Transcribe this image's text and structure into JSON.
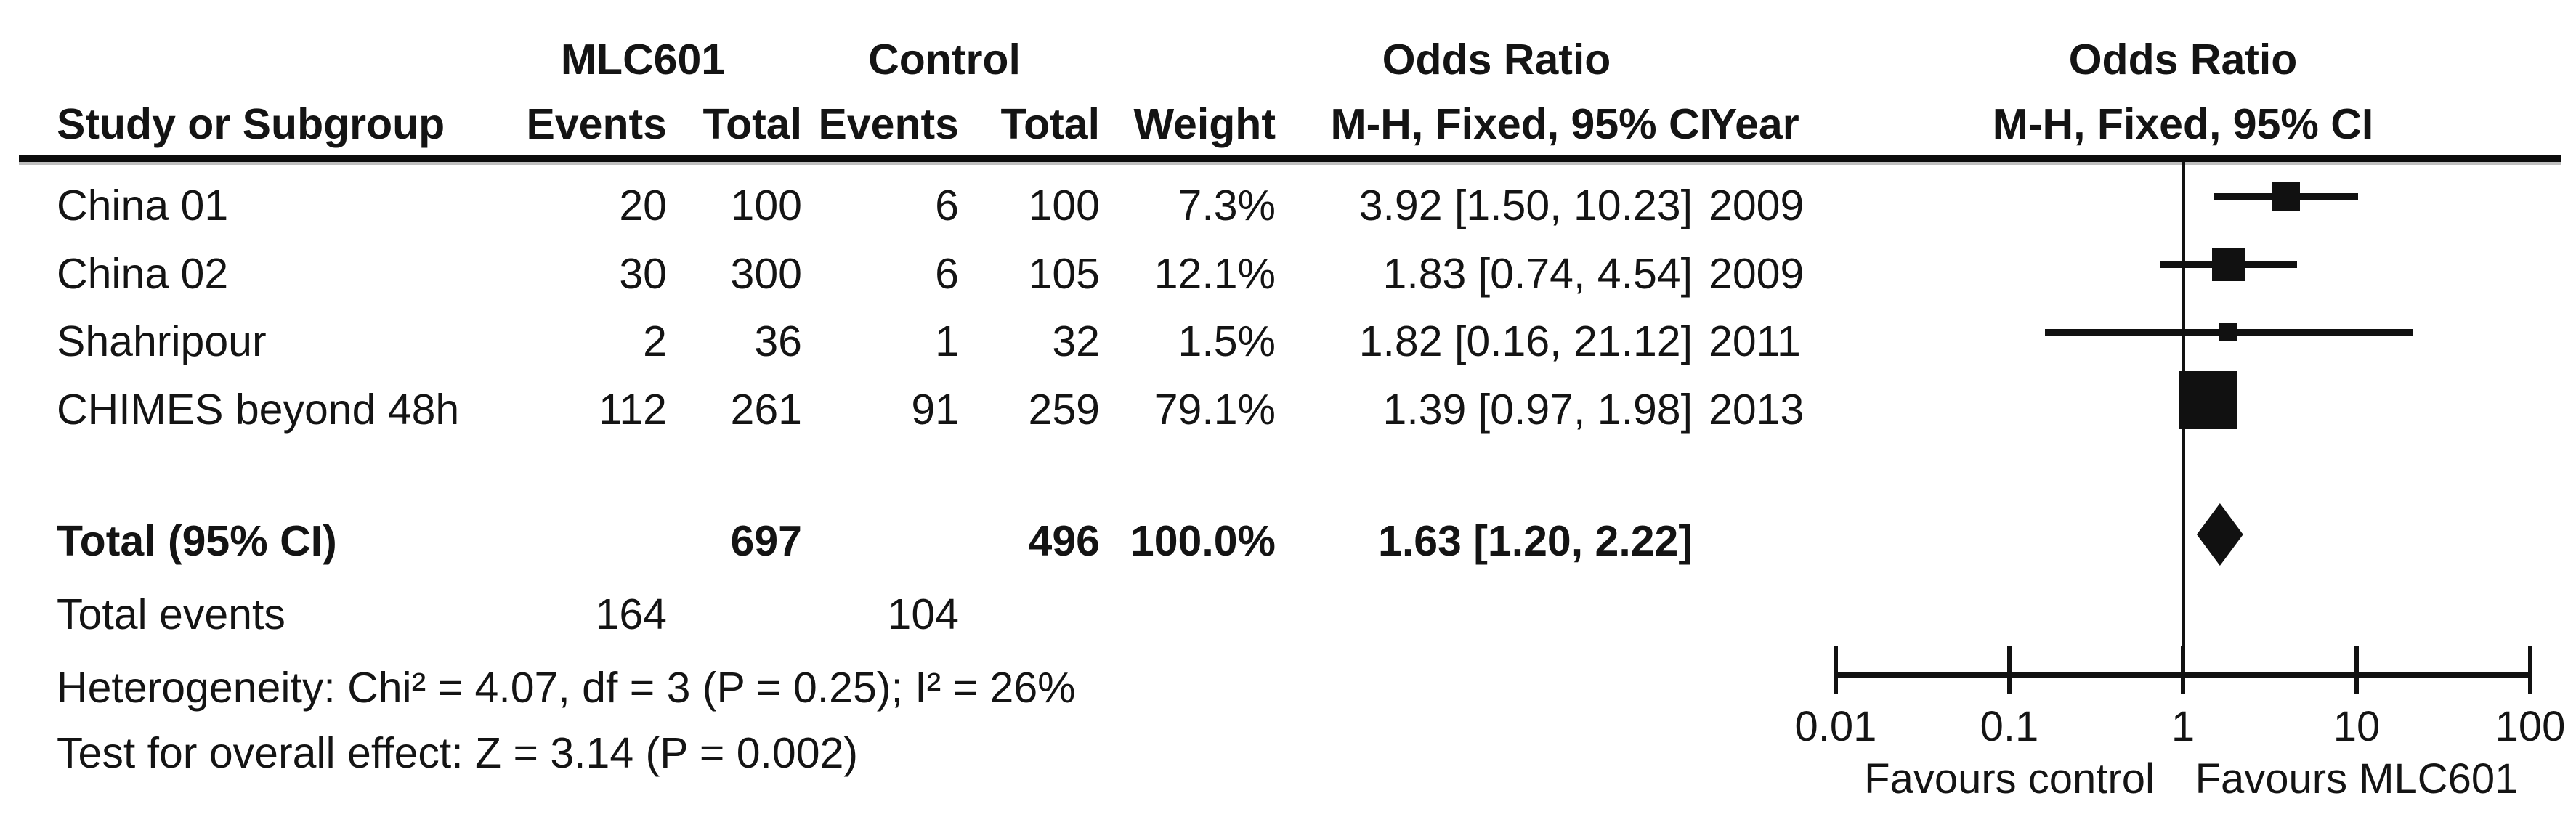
{
  "table": {
    "header": {
      "group_mlc601": "MLC601",
      "group_control": "Control",
      "group_odds_ratio": "Odds Ratio",
      "col_study": "Study or Subgroup",
      "col_events": "Events",
      "col_total": "Total",
      "col_weight": "Weight",
      "col_mh_ci": "M-H, Fixed, 95% CI",
      "col_year": "Year"
    },
    "rows": [
      {
        "study": "China 01",
        "events_mlc601": "20",
        "total_mlc601": "100",
        "events_control": "6",
        "total_control": "100",
        "weight": "7.3%",
        "or_ci": "3.92 [1.50, 10.23]",
        "year": "2009"
      },
      {
        "study": "China 02",
        "events_mlc601": "30",
        "total_mlc601": "300",
        "events_control": "6",
        "total_control": "105",
        "weight": "12.1%",
        "or_ci": "1.83 [0.74, 4.54]",
        "year": "2009"
      },
      {
        "study": "Shahripour",
        "events_mlc601": "2",
        "total_mlc601": "36",
        "events_control": "1",
        "total_control": "32",
        "weight": "1.5%",
        "or_ci": "1.82 [0.16, 21.12]",
        "year": "2011"
      },
      {
        "study": "CHIMES beyond 48h",
        "events_mlc601": "112",
        "total_mlc601": "261",
        "events_control": "91",
        "total_control": "259",
        "weight": "79.1%",
        "or_ci": "1.39 [0.97, 1.98]",
        "year": "2013"
      }
    ],
    "total_row": {
      "label": "Total (95% CI)",
      "total_mlc601": "697",
      "total_control": "496",
      "weight": "100.0%",
      "or_ci": "1.63 [1.20, 2.22]"
    },
    "total_events_row": {
      "label": "Total events",
      "events_mlc601": "164",
      "events_control": "104"
    },
    "heterogeneity": "Heterogeneity: Chi² = 4.07, df = 3 (P = 0.25); I² = 26%",
    "overall_effect": "Test for overall effect: Z = 3.14 (P = 0.002)"
  },
  "plot": {
    "header_title": "Odds Ratio",
    "header_subtitle": "M-H, Fixed, 95% CI",
    "axis_tick_labels": [
      "0.01",
      "0.1",
      "1",
      "10",
      "100"
    ],
    "favours_left": "Favours control",
    "favours_right": "Favours MLC601",
    "ink_color": "#111111"
  },
  "chart_data": {
    "type": "forest",
    "effect_measure": "Odds Ratio",
    "method": "M-H, Fixed, 95% CI",
    "x_scale": "log",
    "x_ticks": [
      0.01,
      0.1,
      1,
      10,
      100
    ],
    "xlim": [
      0.01,
      100
    ],
    "null_line": 1,
    "studies": [
      {
        "name": "China 01",
        "year": 2009,
        "or": 3.92,
        "ci_low": 1.5,
        "ci_high": 10.23,
        "weight_pct": 7.3
      },
      {
        "name": "China 02",
        "year": 2009,
        "or": 1.83,
        "ci_low": 0.74,
        "ci_high": 4.54,
        "weight_pct": 12.1
      },
      {
        "name": "Shahripour",
        "year": 2011,
        "or": 1.82,
        "ci_low": 0.16,
        "ci_high": 21.12,
        "weight_pct": 1.5
      },
      {
        "name": "CHIMES beyond 48h",
        "year": 2013,
        "or": 1.39,
        "ci_low": 0.97,
        "ci_high": 1.98,
        "weight_pct": 79.1
      }
    ],
    "total": {
      "label": "Total (95% CI)",
      "or": 1.63,
      "ci_low": 1.2,
      "ci_high": 2.22,
      "weight_pct": 100.0,
      "mlc601_total": 697,
      "control_total": 496,
      "mlc601_events": 164,
      "control_events": 104
    },
    "heterogeneity": {
      "chi2": 4.07,
      "df": 3,
      "p": 0.25,
      "i2_pct": 26
    },
    "overall_effect": {
      "z": 3.14,
      "p": 0.002
    }
  }
}
